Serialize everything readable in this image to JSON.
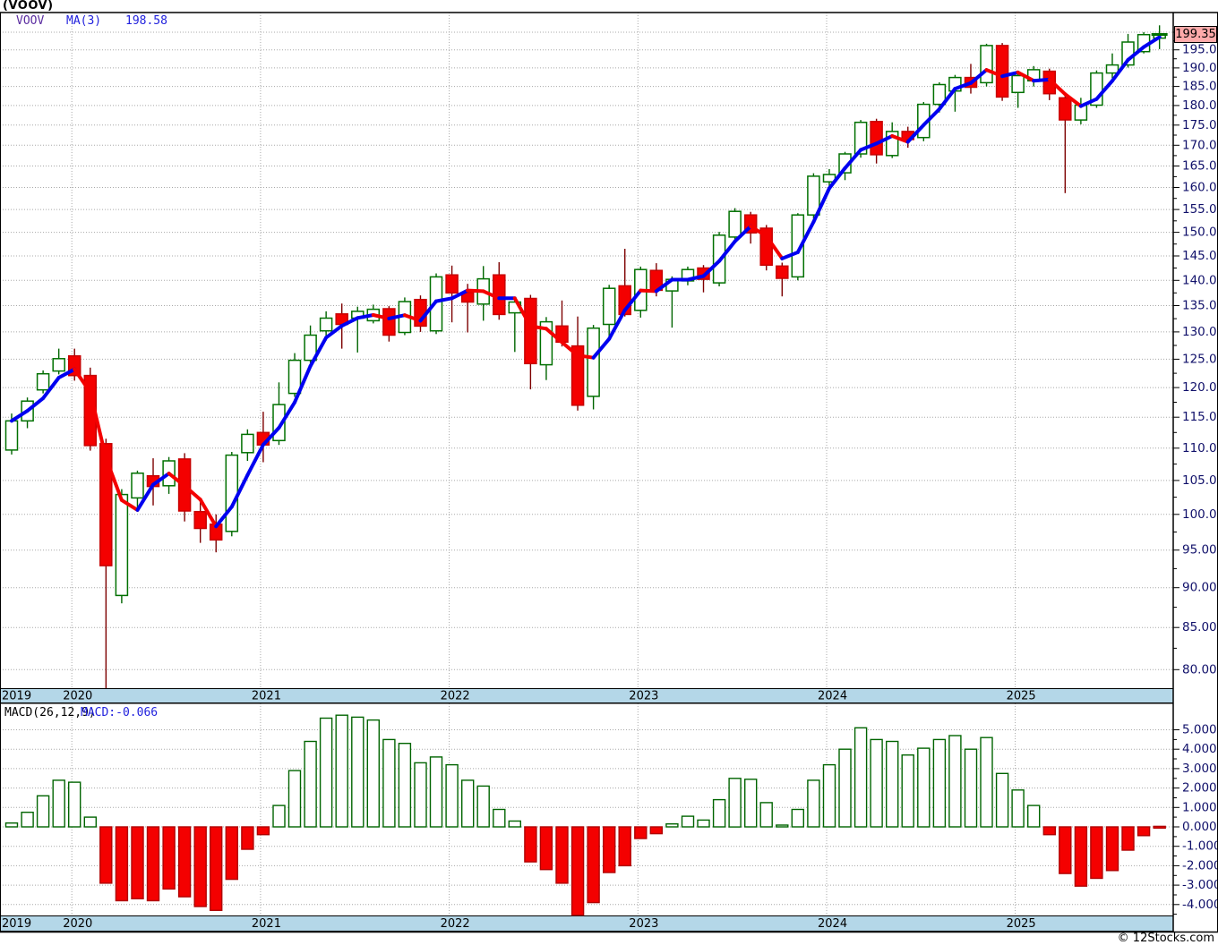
{
  "title": "(VOOV)",
  "main_legend": {
    "symbol": "VOOV",
    "ma_label": "MA(3)",
    "ma_value": "198.58"
  },
  "macd_legend": {
    "label": "MACD(26,12,9)",
    "value": "MACD:-0.066"
  },
  "price_tag": "199.35",
  "footer": "© 12Stocks.com",
  "colors": {
    "up_body_stroke": "#007000",
    "up_body_fill": "#ffffff",
    "up_wick": "#006400",
    "down_body_fill": "#f40000",
    "down_body_stroke": "#c80000",
    "down_wick": "#7d0000",
    "ma_rising": "#0000f0",
    "ma_falling": "#f40000",
    "axis_text": "#10106a",
    "grid": "#a8a8a8",
    "band_bg": "#b4d7e8",
    "tag_bg": "#ffaaaa",
    "symbol_text": "#5a2ca0",
    "legend_value_text": "#2121dd",
    "macd_pos_stroke": "#006400",
    "macd_pos_fill": "#ffffff",
    "macd_neg_fill": "#f40000",
    "macd_neg_stroke": "#b00000"
  },
  "x_axis": {
    "year_labels": [
      {
        "label": "2019",
        "candle_index": 0,
        "at_edge": true
      },
      {
        "label": "2020",
        "candle_index": 4
      },
      {
        "label": "2021",
        "candle_index": 16
      },
      {
        "label": "2022",
        "candle_index": 28
      },
      {
        "label": "2023",
        "candle_index": 40
      },
      {
        "label": "2024",
        "candle_index": 52
      },
      {
        "label": "2025",
        "candle_index": 64
      }
    ]
  },
  "chart_data": [
    {
      "type": "candlestick",
      "title": "VOOV monthly candlesticks with MA(3) overlay",
      "scale": "log",
      "axis_side": "right",
      "y_ticks": [
        200,
        195,
        190,
        185,
        180,
        175,
        170,
        165,
        160,
        155,
        150,
        145,
        140,
        135,
        130,
        125,
        120,
        115,
        110,
        105,
        100,
        95,
        90,
        85,
        80
      ],
      "y_minor_step": 2.5,
      "ylim": [
        78,
        206
      ],
      "last_price": 199.35,
      "overlay": {
        "name": "MA(3)",
        "period": 3
      },
      "ohlc_format": [
        "month",
        "open",
        "high",
        "low",
        "close"
      ],
      "candles": [
        [
          "2019-09",
          109.7,
          115.6,
          109.0,
          114.4
        ],
        [
          "2019-10",
          114.4,
          118.3,
          113.2,
          117.7
        ],
        [
          "2019-11",
          119.6,
          123.0,
          119.0,
          122.4
        ],
        [
          "2019-12",
          122.9,
          126.9,
          122.3,
          125.1
        ],
        [
          "2020-01",
          125.6,
          126.9,
          121.2,
          122.1
        ],
        [
          "2020-02",
          122.1,
          123.5,
          109.6,
          110.4
        ],
        [
          "2020-03",
          110.7,
          111.5,
          77.9,
          92.9
        ],
        [
          "2020-04",
          89.0,
          103.7,
          88.0,
          102.9
        ],
        [
          "2020-05",
          102.4,
          106.5,
          100.4,
          106.1
        ],
        [
          "2020-06",
          105.7,
          108.4,
          101.3,
          104.1
        ],
        [
          "2020-07",
          104.2,
          108.6,
          103.0,
          108.0
        ],
        [
          "2020-08",
          108.3,
          109.2,
          99.0,
          100.5
        ],
        [
          "2020-09",
          100.4,
          101.8,
          96.0,
          98.0
        ],
        [
          "2020-10",
          98.6,
          100.0,
          94.7,
          96.4
        ],
        [
          "2020-11",
          97.6,
          109.4,
          96.9,
          108.9
        ],
        [
          "2020-12",
          109.3,
          113.0,
          108.0,
          112.2
        ],
        [
          "2021-01",
          112.5,
          115.9,
          107.8,
          110.5
        ],
        [
          "2021-02",
          111.2,
          120.9,
          110.5,
          117.1
        ],
        [
          "2021-03",
          119.0,
          126.1,
          118.4,
          124.8
        ],
        [
          "2021-04",
          124.8,
          131.2,
          124.3,
          129.4
        ],
        [
          "2021-05",
          130.2,
          133.9,
          128.4,
          132.6
        ],
        [
          "2021-06",
          133.4,
          135.4,
          126.9,
          131.4
        ],
        [
          "2021-07",
          132.6,
          134.8,
          126.2,
          133.9
        ],
        [
          "2021-08",
          132.1,
          135.2,
          131.6,
          134.3
        ],
        [
          "2021-09",
          134.4,
          134.9,
          128.2,
          129.4
        ],
        [
          "2021-10",
          129.9,
          136.6,
          129.4,
          135.8
        ],
        [
          "2021-11",
          136.2,
          137.0,
          130.0,
          131.1
        ],
        [
          "2021-12",
          130.2,
          141.4,
          129.6,
          140.7
        ],
        [
          "2022-01",
          141.1,
          143.0,
          131.8,
          137.5
        ],
        [
          "2022-02",
          137.6,
          139.3,
          129.9,
          135.7
        ],
        [
          "2022-03",
          135.3,
          142.9,
          132.1,
          140.3
        ],
        [
          "2022-04",
          141.1,
          143.7,
          132.3,
          133.3
        ],
        [
          "2022-05",
          133.6,
          136.4,
          126.3,
          135.7
        ],
        [
          "2022-06",
          136.4,
          137.1,
          119.7,
          124.2
        ],
        [
          "2022-07",
          124.0,
          132.8,
          121.3,
          131.9
        ],
        [
          "2022-08",
          131.1,
          136.0,
          127.3,
          128.1
        ],
        [
          "2022-09",
          127.4,
          132.9,
          116.1,
          117.0
        ],
        [
          "2022-10",
          118.5,
          131.3,
          116.3,
          130.7
        ],
        [
          "2022-11",
          131.4,
          139.1,
          128.4,
          138.4
        ],
        [
          "2022-12",
          138.9,
          146.5,
          132.9,
          133.3
        ],
        [
          "2023-01",
          134.1,
          142.8,
          132.7,
          142.2
        ],
        [
          "2023-02",
          142.0,
          143.5,
          136.8,
          138.0
        ],
        [
          "2023-03",
          137.9,
          140.8,
          130.8,
          140.2
        ],
        [
          "2023-04",
          139.9,
          142.8,
          139.0,
          142.2
        ],
        [
          "2023-05",
          142.5,
          143.1,
          137.6,
          140.2
        ],
        [
          "2023-06",
          139.5,
          150.1,
          138.8,
          149.4
        ],
        [
          "2023-07",
          149.0,
          155.3,
          148.4,
          154.6
        ],
        [
          "2023-08",
          153.8,
          154.5,
          147.6,
          149.9
        ],
        [
          "2023-09",
          150.9,
          151.6,
          142.0,
          143.1
        ],
        [
          "2023-10",
          142.9,
          143.6,
          136.8,
          140.4
        ],
        [
          "2023-11",
          140.7,
          154.2,
          140.0,
          153.8
        ],
        [
          "2023-12",
          153.8,
          163.3,
          153.0,
          162.6
        ],
        [
          "2024-01",
          161.3,
          164.3,
          159.2,
          163.0
        ],
        [
          "2024-02",
          163.4,
          168.4,
          161.7,
          167.9
        ],
        [
          "2024-03",
          167.9,
          176.3,
          167.0,
          175.7
        ],
        [
          "2024-04",
          175.9,
          176.6,
          165.6,
          167.7
        ],
        [
          "2024-05",
          167.5,
          175.7,
          166.9,
          173.4
        ],
        [
          "2024-06",
          173.4,
          174.6,
          169.4,
          171.4
        ],
        [
          "2024-07",
          171.9,
          180.9,
          171.0,
          180.3
        ],
        [
          "2024-08",
          180.3,
          186.1,
          178.2,
          185.5
        ],
        [
          "2024-09",
          183.8,
          188.1,
          178.4,
          187.4
        ],
        [
          "2024-10",
          187.4,
          191.1,
          183.1,
          184.8
        ],
        [
          "2024-11",
          186.0,
          196.7,
          185.0,
          196.2
        ],
        [
          "2024-12",
          196.2,
          196.9,
          181.2,
          182.2
        ],
        [
          "2025-01",
          183.4,
          189.1,
          179.4,
          187.9
        ],
        [
          "2025-02",
          186.5,
          190.5,
          185.0,
          189.5
        ],
        [
          "2025-03",
          189.1,
          189.8,
          181.4,
          183.1
        ],
        [
          "2025-04",
          182.0,
          182.7,
          158.7,
          176.3
        ],
        [
          "2025-05",
          176.3,
          182.0,
          175.2,
          180.1
        ],
        [
          "2025-06",
          180.1,
          189.3,
          179.4,
          188.6
        ],
        [
          "2025-07",
          188.6,
          194.0,
          187.2,
          190.8
        ],
        [
          "2025-08",
          190.8,
          199.5,
          190.1,
          197.2
        ],
        [
          "2025-09",
          194.5,
          200.0,
          194.0,
          199.3
        ],
        [
          "2025-10",
          198.3,
          202.0,
          195.2,
          199.35
        ]
      ]
    },
    {
      "type": "bar",
      "title": "MACD(26,12,9) histogram",
      "axis_side": "right",
      "y_ticks": [
        5,
        4,
        3,
        2,
        1,
        0,
        -1,
        -2,
        -3,
        -4
      ],
      "y_minor_step": 0.5,
      "ylim": [
        -4.7,
        6.3
      ],
      "last_value": -0.066,
      "positive_style": "hollow-green",
      "negative_style": "solid-red",
      "values": [
        0.2,
        0.75,
        1.6,
        2.4,
        2.3,
        0.5,
        -2.9,
        -3.8,
        -3.7,
        -3.8,
        -3.2,
        -3.6,
        -4.1,
        -4.3,
        -2.7,
        -1.15,
        -0.4,
        1.1,
        2.9,
        4.4,
        5.6,
        5.75,
        5.65,
        5.5,
        4.5,
        4.3,
        3.3,
        3.6,
        3.2,
        2.4,
        2.1,
        0.9,
        0.3,
        -1.8,
        -2.2,
        -2.9,
        -4.55,
        -3.9,
        -2.35,
        -2.0,
        -0.6,
        -0.35,
        0.15,
        0.55,
        0.35,
        1.4,
        2.5,
        2.45,
        1.25,
        0.05,
        0.9,
        2.4,
        3.2,
        4.0,
        5.1,
        4.5,
        4.4,
        3.7,
        4.05,
        4.5,
        4.7,
        4.0,
        4.6,
        2.75,
        1.9,
        1.1,
        -0.4,
        -2.4,
        -3.05,
        -2.65,
        -2.25,
        -1.2,
        -0.45,
        -0.066
      ]
    }
  ]
}
